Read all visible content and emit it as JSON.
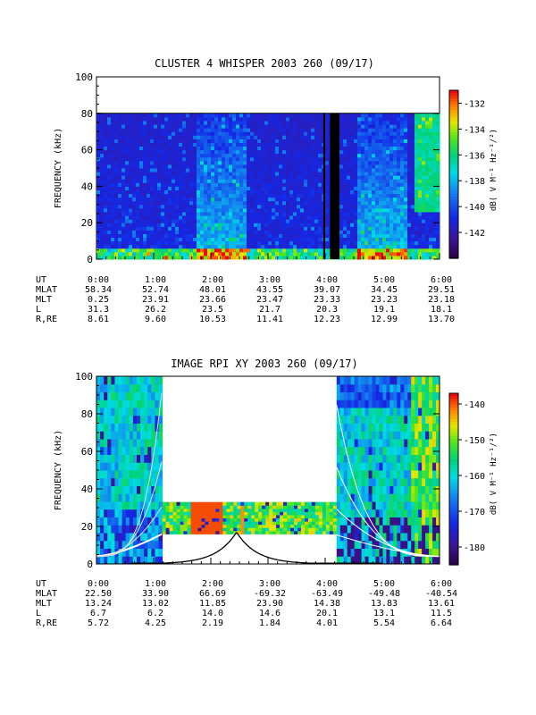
{
  "chart_data": [
    {
      "type": "heatmap",
      "title": "CLUSTER 4 WHISPER 2003 260 (09/17)",
      "ylabel": "FREQUENCY (kHz)",
      "ylim": [
        0,
        100
      ],
      "yticks": [
        0,
        20,
        40,
        60,
        80,
        100
      ],
      "data_top_khz": 80,
      "xlim_hours": [
        0,
        6
      ],
      "colorbar": {
        "label": "dB( V M⁻¹ Hz⁻¹/²)",
        "ticks": [
          -132,
          -134,
          -136,
          -138,
          -140,
          -142
        ],
        "range": [
          -144,
          -131
        ]
      },
      "data_gaps": [
        {
          "start": "3:58",
          "end": "4:00"
        },
        {
          "start": "4:05",
          "end": "4:15"
        }
      ],
      "ephemeris": {
        "row_labels": [
          "UT",
          "MLAT",
          "MLT",
          "L",
          "R,RE"
        ],
        "columns": [
          [
            "0:00",
            "58.34",
            "0.25",
            "31.3",
            "8.61"
          ],
          [
            "1:00",
            "52.74",
            "23.91",
            "26.2",
            "9.60"
          ],
          [
            "2:00",
            "48.01",
            "23.66",
            "23.5",
            "10.53"
          ],
          [
            "3:00",
            "43.55",
            "23.47",
            "21.7",
            "11.41"
          ],
          [
            "4:00",
            "39.07",
            "23.33",
            "20.3",
            "12.23"
          ],
          [
            "5:00",
            "34.45",
            "23.23",
            "19.1",
            "12.99"
          ],
          [
            "6:00",
            "29.51",
            "23.18",
            "18.1",
            "13.70"
          ]
        ]
      }
    },
    {
      "type": "heatmap",
      "title": "IMAGE RPI XY 2003 260 (09/17)",
      "ylabel": "FREQUENCY (kHz)",
      "ylim": [
        0,
        100
      ],
      "yticks": [
        0,
        20,
        40,
        60,
        80,
        100
      ],
      "xlim_hours": [
        0,
        6
      ],
      "colorbar": {
        "label": "dB( V M⁻¹ Hz⁻¹/²)",
        "ticks": [
          -140,
          -150,
          -160,
          -170,
          -180
        ],
        "range": [
          -185,
          -137
        ]
      },
      "coverage": [
        {
          "start_h": 0.0,
          "end_h": 1.15,
          "fmax": 100
        },
        {
          "start_h": 1.15,
          "end_h": 4.2,
          "fmin": 16,
          "fmax": 33
        },
        {
          "start_h": 4.2,
          "end_h": 6.0,
          "fmax": 100
        }
      ],
      "ephemeris": {
        "row_labels": [
          "UT",
          "MLAT",
          "MLT",
          "L",
          "R,RE"
        ],
        "columns": [
          [
            "0:00",
            "22.50",
            "13.24",
            "6.7",
            "5.72"
          ],
          [
            "1:00",
            "33.90",
            "13.02",
            "6.2",
            "4.25"
          ],
          [
            "2:00",
            "66.69",
            "11.85",
            "14.0",
            "2.19"
          ],
          [
            "3:00",
            "-69.32",
            "23.90",
            "14.6",
            "1.84"
          ],
          [
            "4:00",
            "-63.49",
            "14.38",
            "20.1",
            "4.01"
          ],
          [
            "5:00",
            "-49.48",
            "13.83",
            "13.1",
            "5.54"
          ],
          [
            "6:00",
            "-40.54",
            "13.61",
            "11.5",
            "6.64"
          ]
        ]
      }
    }
  ]
}
